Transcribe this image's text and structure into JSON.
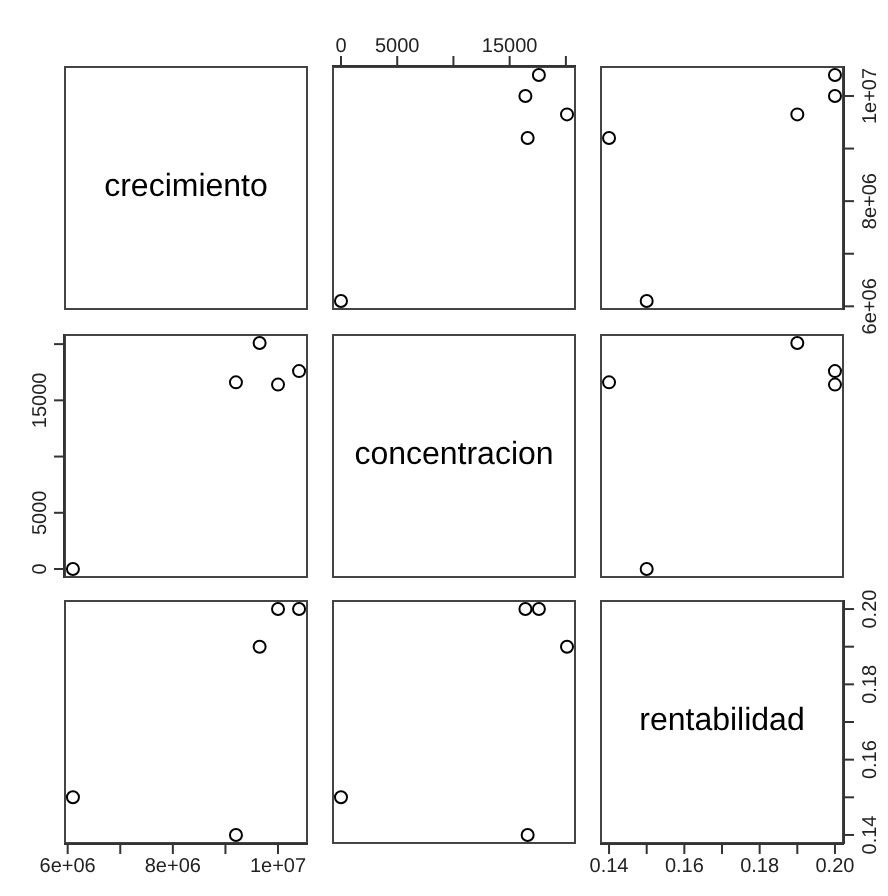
{
  "chart_data": [
    {
      "type": "other",
      "title": "crecimiento"
    },
    {
      "type": "scatter",
      "x": [
        0,
        16600,
        20100,
        16400,
        17600
      ],
      "series": [
        {
          "color": "#000000",
          "values": [
            6100000,
            9200000,
            9650000,
            10000000,
            10400000
          ]
        }
      ],
      "xlim": [
        -800,
        20900
      ],
      "xticks": [
        0,
        5000,
        {
          "value": 10000,
          "label": null
        },
        15000,
        {
          "value": 20000,
          "label": null
        }
      ],
      "ylim": [
        5930000,
        10570000
      ],
      "tick_labels": "x",
      "marker": "circle"
    },
    {
      "type": "scatter",
      "x": [
        0.15,
        0.14,
        0.19,
        0.2,
        0.2
      ],
      "series": [
        {
          "color": "#000000",
          "values": [
            6100000,
            9200000,
            9650000,
            10000000,
            10400000
          ]
        }
      ],
      "xlim": [
        0.1376,
        0.2024
      ],
      "ylim": [
        5930000,
        10570000
      ],
      "yticks": [
        {
          "value": 6000000,
          "label": "6e+06"
        },
        {
          "value": 7000000,
          "label": null
        },
        {
          "value": 8000000,
          "label": "8e+06"
        },
        {
          "value": 9000000,
          "label": null
        },
        {
          "value": 10000000,
          "label": "1e+07"
        }
      ],
      "tick_labels": "y",
      "marker": "circle"
    },
    {
      "type": "scatter",
      "x": [
        6100000,
        9200000,
        9650000,
        10000000,
        10400000
      ],
      "series": [
        {
          "color": "#000000",
          "values": [
            0,
            16600,
            20100,
            16400,
            17600
          ]
        }
      ],
      "xlim": [
        5930000,
        10570000
      ],
      "ylim": [
        -800,
        20900
      ],
      "yticks": [
        0,
        5000,
        {
          "value": 10000,
          "label": null
        },
        15000,
        {
          "value": 20000,
          "label": null
        }
      ],
      "tick_labels": "y",
      "marker": "circle"
    },
    {
      "type": "other",
      "title": "concentracion"
    },
    {
      "type": "scatter",
      "x": [
        0.15,
        0.14,
        0.19,
        0.2,
        0.2
      ],
      "series": [
        {
          "color": "#000000",
          "values": [
            0,
            16600,
            20100,
            16400,
            17600
          ]
        }
      ],
      "xlim": [
        0.1376,
        0.2024
      ],
      "ylim": [
        -800,
        20900
      ],
      "tick_labels": false,
      "marker": "circle"
    },
    {
      "type": "scatter",
      "x": [
        6100000,
        9200000,
        9650000,
        10000000,
        10400000
      ],
      "series": [
        {
          "color": "#000000",
          "values": [
            0.15,
            0.14,
            0.19,
            0.2,
            0.2
          ]
        }
      ],
      "xlim": [
        5930000,
        10570000
      ],
      "xticks": [
        {
          "value": 6000000,
          "label": "6e+06"
        },
        {
          "value": 7000000,
          "label": null
        },
        {
          "value": 8000000,
          "label": "8e+06"
        },
        {
          "value": 9000000,
          "label": null
        },
        {
          "value": 10000000,
          "label": "1e+07"
        }
      ],
      "ylim": [
        0.1376,
        0.2024
      ],
      "tick_labels": "x",
      "marker": "circle"
    },
    {
      "type": "scatter",
      "x": [
        0,
        16600,
        20100,
        16400,
        17600
      ],
      "series": [
        {
          "color": "#000000",
          "values": [
            0.15,
            0.14,
            0.19,
            0.2,
            0.2
          ]
        }
      ],
      "xlim": [
        -800,
        20900
      ],
      "ylim": [
        0.1376,
        0.2024
      ],
      "tick_labels": false,
      "marker": "circle"
    },
    {
      "type": "scatter",
      "title": "rentabilidad",
      "xlim": [
        0.1376,
        0.2024
      ],
      "xticks": [
        0.14,
        {
          "value": 0.15,
          "label": null
        },
        0.16,
        {
          "value": 0.17,
          "label": null
        },
        0.18,
        {
          "value": 0.19,
          "label": null
        },
        {
          "value": 0.2,
          "label": "0.20"
        }
      ],
      "ylim": [
        0.1376,
        0.2024
      ],
      "yticks": [
        0.14,
        {
          "value": 0.15,
          "label": null
        },
        0.16,
        {
          "value": 0.17,
          "label": null
        },
        0.18,
        {
          "value": 0.19,
          "label": null
        },
        {
          "value": 0.2,
          "label": "0.20"
        }
      ]
    }
  ]
}
